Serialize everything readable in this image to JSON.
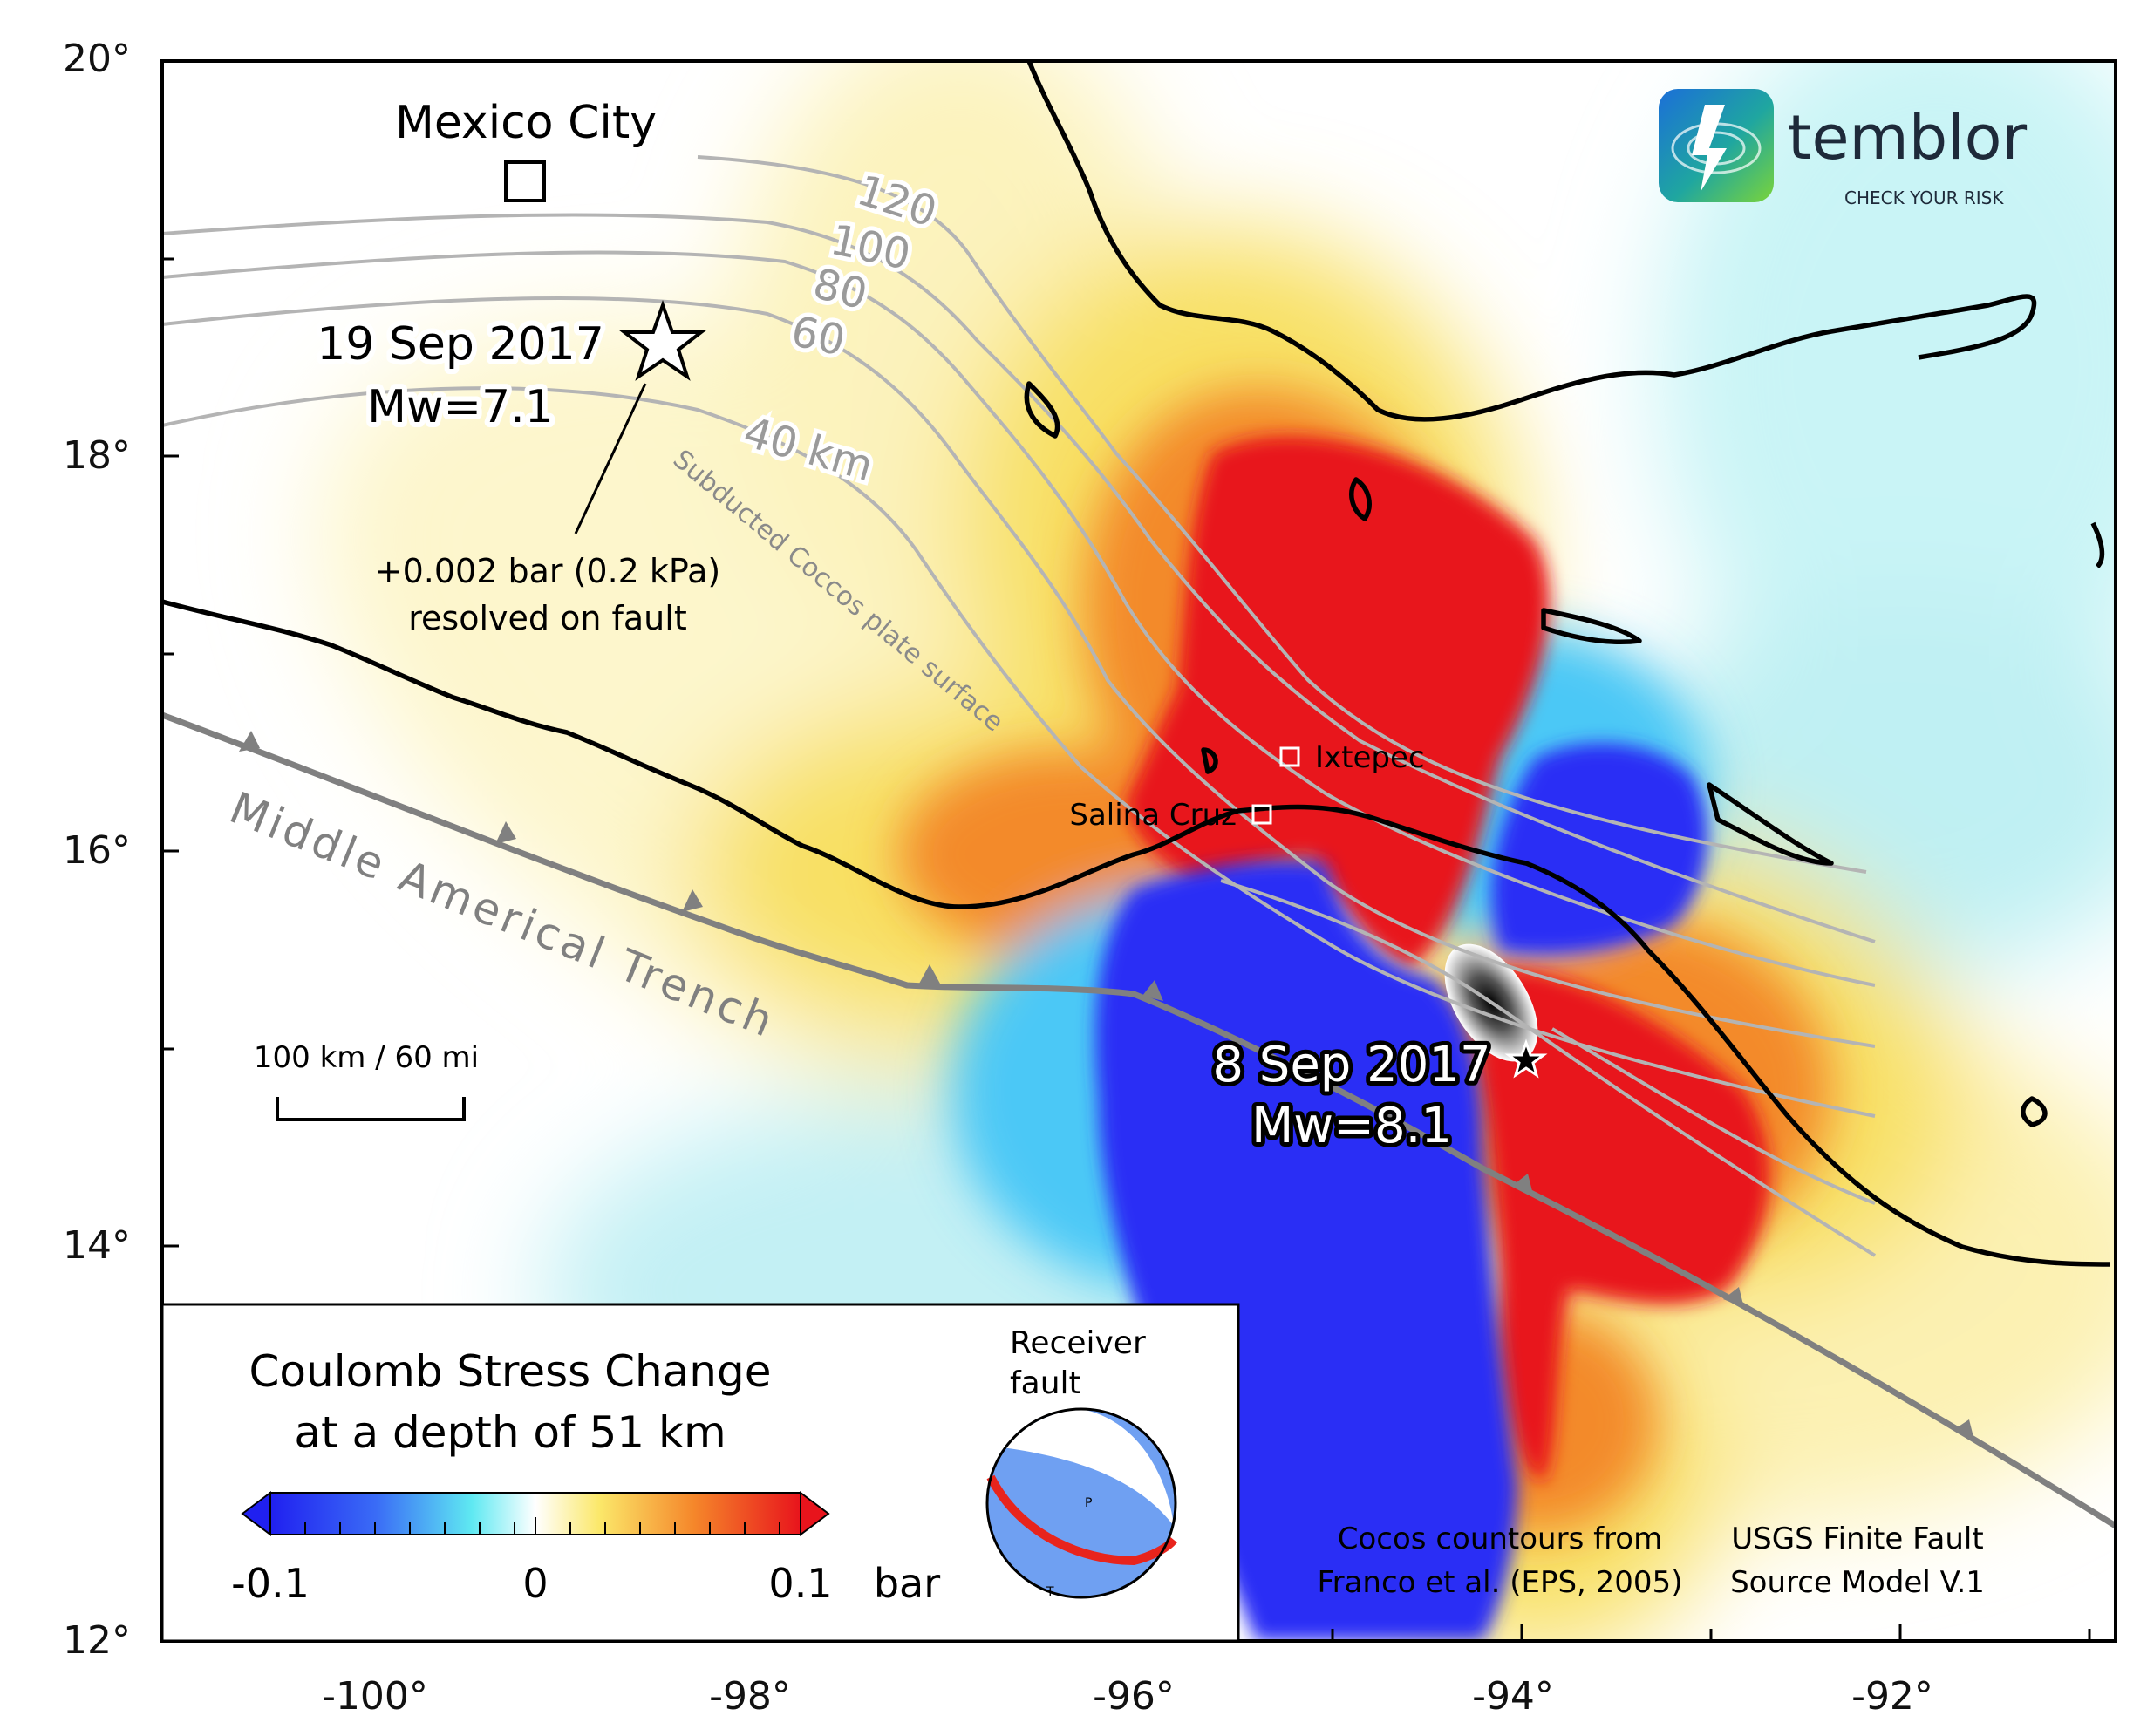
{
  "axes": {
    "lat_ticks": [
      "20°",
      "18°",
      "16°",
      "14°",
      "12°"
    ],
    "lon_ticks": [
      "-100°",
      "-98°",
      "-96°",
      "-94°",
      "-92°"
    ]
  },
  "places": {
    "mexico_city": "Mexico City",
    "ixtepec": "Ixtepec",
    "salina_cruz": "Salina Cruz"
  },
  "quake_sep19": {
    "date": "19 Sep 2017",
    "magnitude": "Mw=7.1"
  },
  "quake_sep8": {
    "date": "8 Sep 2017",
    "magnitude": "Mw=8.1"
  },
  "stress_note": {
    "line1": "+0.002 bar (0.2 kPa)",
    "line2": "resolved on fault"
  },
  "depth_contours": [
    "120",
    "100",
    "80",
    "60",
    "40 km"
  ],
  "slab_label": "Subducted Coccos plate surface",
  "trench_label": "Middle Americal Trench",
  "scale_bar": "100 km / 60 mi",
  "logo": {
    "name": "temblor",
    "tagline": "CHECK YOUR RISK"
  },
  "legend": {
    "title_line1": "Coulomb Stress Change",
    "title_line2": "at a depth of 51 km",
    "min_label": "-0.1",
    "mid_label": "0",
    "max_label": "0.1",
    "unit": "bar",
    "receiver_line1": "Receiver",
    "receiver_line2": "fault",
    "p_label": "P",
    "t_label": "T"
  },
  "credits": {
    "cocos_line1": "Cocos countours from",
    "cocos_line2": "Franco et al. (EPS, 2005)",
    "usgs_line1": "USGS Finite Fault",
    "usgs_line2": "Source Model V.1"
  },
  "colors": {
    "stress_positive": "#e8141c",
    "stress_negative": "#2a2ef5",
    "stress_pos_mid": "#f58a25",
    "stress_pos_low": "#f8e36a",
    "stress_neg_low": "#6fe8f0",
    "coastline": "#000000",
    "trench": "#808080",
    "contour": "#b4b4b4"
  }
}
